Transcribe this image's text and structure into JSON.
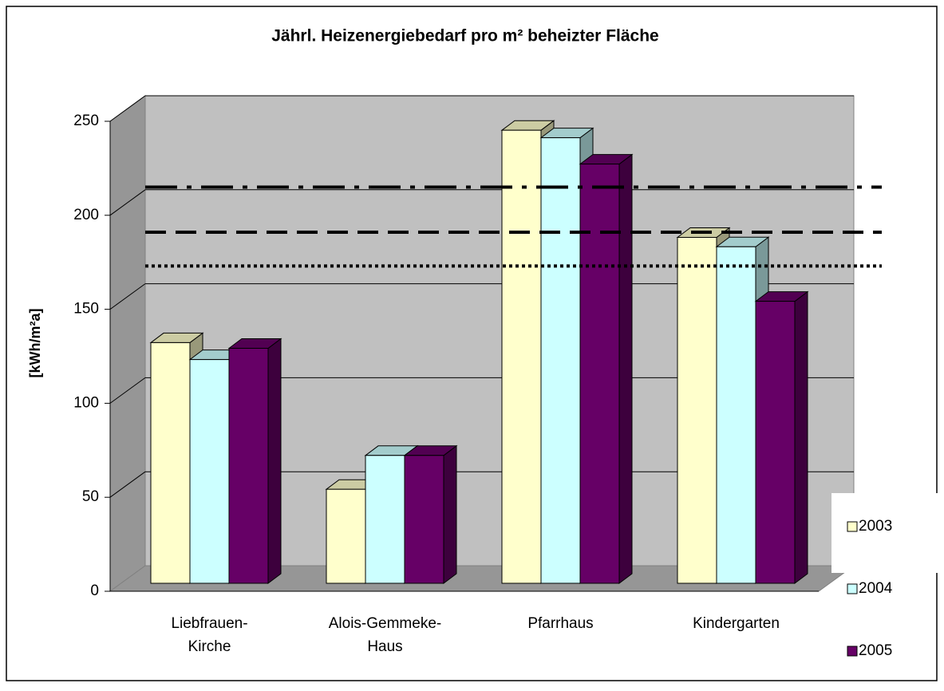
{
  "chart_data": {
    "type": "bar3d",
    "title": "Jährl. Heizenergiebedarf pro m² beheizter Fläche",
    "y_label": "[kWh/m²a]",
    "categories": [
      "Liebfrauen-\nKirche",
      "Alois-Gemmeke-\nHaus",
      "Pfarrhaus",
      "Kindergarten"
    ],
    "series": [
      {
        "name": "2003",
        "color": "#ffffcc",
        "values": [
          128,
          50,
          241,
          184
        ]
      },
      {
        "name": "2004",
        "color": "#ccffff",
        "values": [
          119,
          68,
          237,
          179
        ]
      },
      {
        "name": "2005",
        "color": "#660066",
        "values": [
          125,
          68,
          223,
          150
        ]
      }
    ],
    "lines": [
      {
        "value": 215,
        "style": "dashdot"
      },
      {
        "value": 191,
        "style": "dashed"
      },
      {
        "value": 173,
        "style": "dotted"
      }
    ],
    "ylim": [
      0,
      250
    ],
    "yticks": [
      0,
      50,
      100,
      150,
      200,
      250
    ],
    "grid": true,
    "legend": "right"
  }
}
